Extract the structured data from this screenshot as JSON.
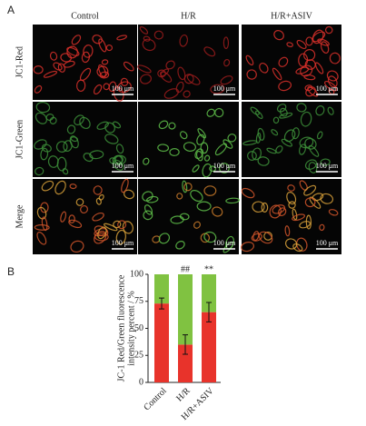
{
  "panel_a": {
    "label": "A",
    "columns": [
      "Control",
      "H/R",
      "H/R+ASIV"
    ],
    "rows": [
      "JC1-Red",
      "JC1-Green",
      "Merge"
    ],
    "scale_bar": "100 μm"
  },
  "chart_data": {
    "type": "bar",
    "stacked": true,
    "panel_label": "B",
    "ylabel": [
      "JC-1 Red/Green fluorescence",
      "intensity percent / %"
    ],
    "categories": [
      "Control",
      "H/R",
      "H/R+ASIV"
    ],
    "series": [
      {
        "name": "Red",
        "color": "#e8332b",
        "values": [
          73,
          35,
          65
        ],
        "errors": [
          5,
          9,
          9
        ]
      },
      {
        "name": "Green",
        "color": "#80c241",
        "values": [
          27,
          65,
          35
        ]
      }
    ],
    "annotations": [
      {
        "category": "H/R",
        "text": "##"
      },
      {
        "category": "H/R+ASIV",
        "text": "**"
      }
    ],
    "ylim": [
      0,
      100
    ],
    "yticks": [
      0,
      25,
      50,
      75,
      100
    ]
  }
}
